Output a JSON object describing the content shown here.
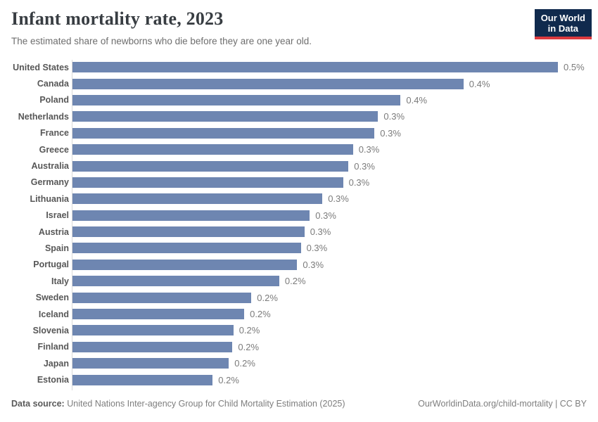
{
  "header": {
    "title": "Infant mortality rate, 2023",
    "subtitle": "The estimated share of newborns who die before they are one year old.",
    "logo": {
      "line1": "Our World",
      "line2": "in Data",
      "bg_color": "#102a4d",
      "accent_color": "#dc3a3f"
    }
  },
  "chart_data": {
    "type": "bar",
    "orientation": "horizontal",
    "title": "Infant mortality rate, 2023",
    "subtitle": "The estimated share of newborns who die before they are one year old.",
    "xlabel": "",
    "ylabel": "",
    "unit": "%",
    "xlim": [
      0,
      0.54
    ],
    "grid": false,
    "legend": "none",
    "value_label_position": "outside-end",
    "bar_color": "#6e86b1",
    "axis_line_color": "#d9d9d9",
    "categories": [
      "United States",
      "Canada",
      "Poland",
      "Netherlands",
      "France",
      "Greece",
      "Australia",
      "Germany",
      "Lithuania",
      "Israel",
      "Austria",
      "Spain",
      "Portugal",
      "Italy",
      "Sweden",
      "Iceland",
      "Slovenia",
      "Finland",
      "Japan",
      "Estonia"
    ],
    "values": [
      0.54,
      0.435,
      0.365,
      0.34,
      0.336,
      0.312,
      0.307,
      0.301,
      0.278,
      0.264,
      0.258,
      0.254,
      0.25,
      0.23,
      0.199,
      0.191,
      0.179,
      0.178,
      0.174,
      0.156
    ],
    "labels": [
      "0.5%",
      "0.4%",
      "0.4%",
      "0.3%",
      "0.3%",
      "0.3%",
      "0.3%",
      "0.3%",
      "0.3%",
      "0.3%",
      "0.3%",
      "0.3%",
      "0.3%",
      "0.2%",
      "0.2%",
      "0.2%",
      "0.2%",
      "0.2%",
      "0.2%",
      "0.2%"
    ]
  },
  "footer": {
    "source_label": "Data source:",
    "source_text": "United Nations Inter-agency Group for Child Mortality Estimation (2025)",
    "link_text": "OurWorldinData.org/child-mortality | CC BY"
  }
}
